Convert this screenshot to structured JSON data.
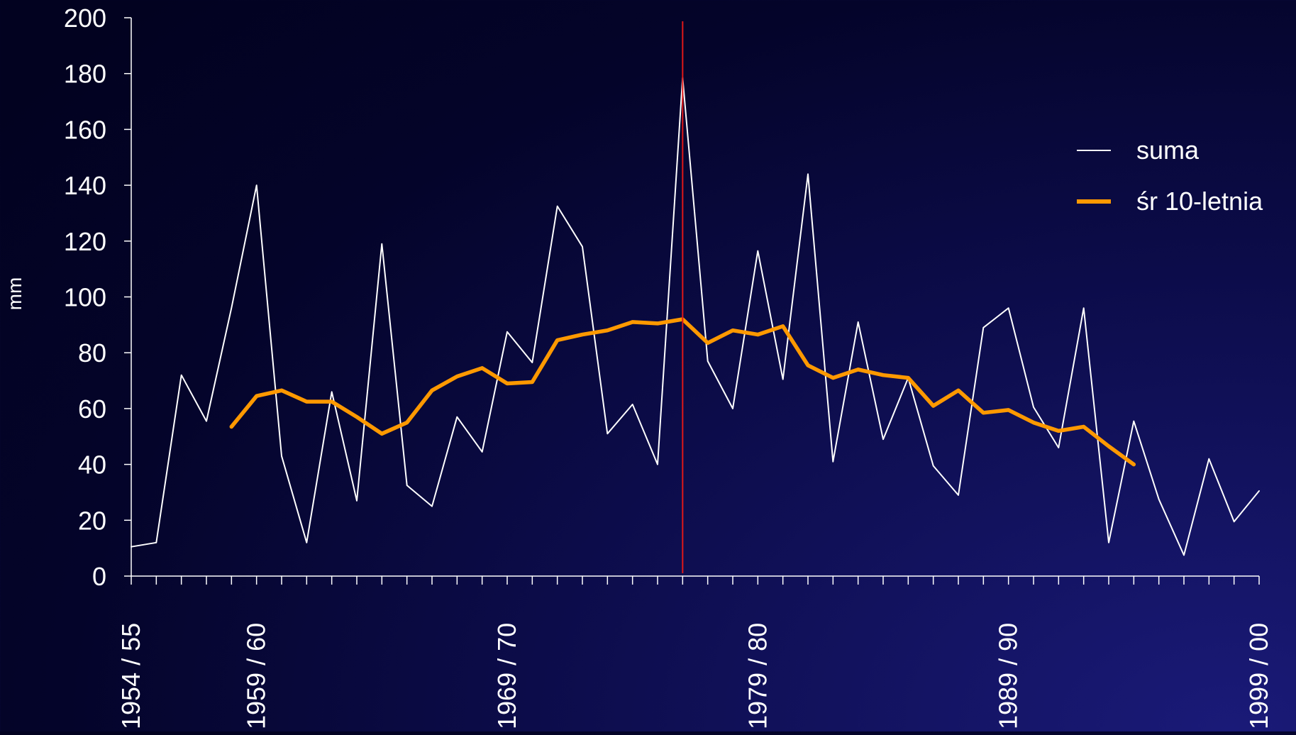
{
  "chart_data": {
    "type": "line",
    "title": "",
    "xlabel": "",
    "ylabel": "mm",
    "ylim": [
      0,
      200
    ],
    "yticks": [
      0,
      20,
      40,
      60,
      80,
      100,
      120,
      140,
      160,
      180,
      200
    ],
    "x": [
      "1954 / 55",
      "1955 / 56",
      "1956 / 57",
      "1957 / 58",
      "1958 / 59",
      "1959 / 60",
      "1960 / 61",
      "1961 / 62",
      "1962 / 63",
      "1963 / 64",
      "1964 / 65",
      "1965 / 66",
      "1966 / 67",
      "1967 / 68",
      "1968 / 69",
      "1969 / 70",
      "1970 / 71",
      "1971 / 72",
      "1972 / 73",
      "1973 / 74",
      "1974 / 75",
      "1975 / 76",
      "1976 / 77",
      "1977 / 78",
      "1978 / 79",
      "1979 / 80",
      "1980 / 81",
      "1981 / 82",
      "1982 / 83",
      "1983 / 84",
      "1984 / 85",
      "1985 / 86",
      "1986 / 87",
      "1987 / 88",
      "1988 / 89",
      "1989 / 90",
      "1990 / 91",
      "1991 / 92",
      "1992 / 93",
      "1993 / 94",
      "1994 / 95",
      "1995 / 96",
      "1996 / 97",
      "1997 / 98",
      "1998 / 99",
      "1999 / 00"
    ],
    "xtick_labels_shown": [
      "1954 / 55",
      "1959 / 60",
      "1969 / 70",
      "1979 / 80",
      "1989 / 90",
      "1999 / 00"
    ],
    "vertical_marker": {
      "x": "1976 / 77",
      "color": "#e01818"
    },
    "series": [
      {
        "name": "suma",
        "color": "#ffffff",
        "values": [
          10.5,
          12,
          72,
          55.5,
          96,
          140,
          43,
          12,
          66,
          27,
          119,
          32.5,
          25,
          57,
          44.5,
          87.5,
          76.5,
          132.5,
          118,
          51,
          61.5,
          40,
          178.5,
          77,
          60,
          116.5,
          70.5,
          144,
          41,
          91,
          49,
          71,
          39.5,
          29,
          89,
          96,
          60.5,
          46,
          96,
          12,
          55.5,
          27.5,
          7.5,
          42,
          19.5,
          30.5
        ]
      },
      {
        "name": "śr 10-letnia",
        "color": "#ff9900",
        "values": [
          null,
          null,
          null,
          null,
          53.5,
          64.5,
          66.5,
          62.5,
          62.5,
          57,
          51,
          55,
          66.5,
          71.5,
          74.5,
          69,
          69.5,
          84.5,
          86.5,
          88,
          91,
          90.5,
          92,
          83.5,
          88,
          86.5,
          89.5,
          75.5,
          71,
          74,
          72,
          71,
          61,
          66.5,
          58.5,
          59.5,
          55,
          52,
          53.5,
          46.5,
          40,
          null,
          null,
          null,
          null,
          null
        ]
      }
    ],
    "grid": false,
    "legend_position": "right"
  }
}
